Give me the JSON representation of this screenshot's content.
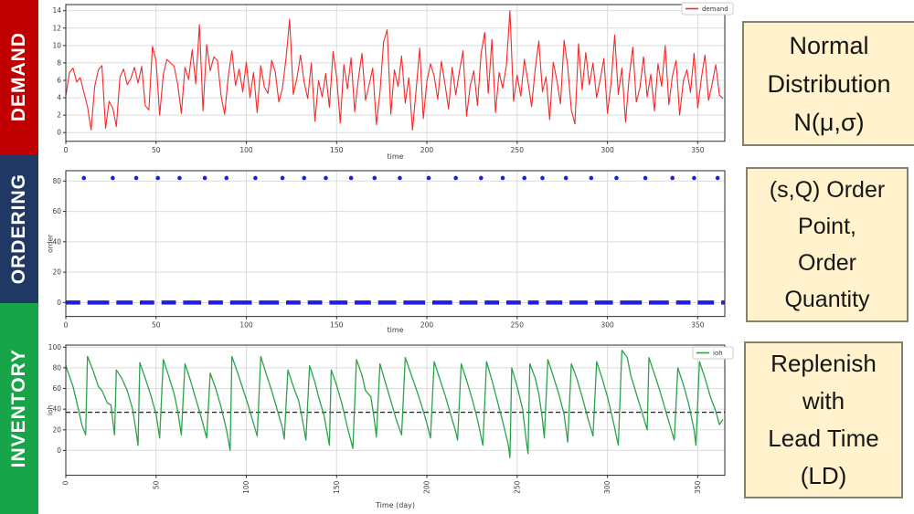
{
  "sidebar": {
    "items": [
      {
        "label": "DEMAND",
        "color": "#C00000"
      },
      {
        "label": "ORDERING",
        "color": "#1F3864"
      },
      {
        "label": "INVENTORY",
        "color": "#18A54A"
      }
    ]
  },
  "annotations": [
    {
      "lines": [
        "Normal",
        "Distribution",
        "N(μ,σ)"
      ]
    },
    {
      "lines": [
        "(s,Q) Order",
        "Point,",
        "Order",
        "Quantity"
      ]
    },
    {
      "lines": [
        "Replenish",
        "with",
        "Lead Time",
        "(LD)"
      ]
    }
  ],
  "annotation_style": {
    "bg": "#FFF2CC",
    "border": "#83836B"
  },
  "chart_style": {
    "grid": "#DCDCDC",
    "spine": "#2B2B2B",
    "tick_text": "#3C3C3C",
    "threshold": "#2F2F2F"
  },
  "chart_data": [
    {
      "type": "line",
      "series_name": "demand",
      "legend": "demand",
      "color": "#F42A2A",
      "xlabel": "time",
      "ylabel": "",
      "xticks": [
        0,
        50,
        100,
        150,
        200,
        250,
        300,
        350
      ],
      "yticks": [
        0,
        2,
        4,
        6,
        8,
        10,
        12,
        14
      ],
      "xlim": [
        0,
        365
      ],
      "ylim": [
        -0.5,
        14.7
      ],
      "grid": true,
      "legend_position": "upper right",
      "x_step": 2,
      "values": [
        4.2,
        6.9,
        7.4,
        5.8,
        6.3,
        4.6,
        3.0,
        0.3,
        5.3,
        7.2,
        7.7,
        0.5,
        3.6,
        2.8,
        0.7,
        6.4,
        7.3,
        5.5,
        6.2,
        7.5,
        5.7,
        7.6,
        3.1,
        2.6,
        9.9,
        8.2,
        2.0,
        6.7,
        8.4,
        8.0,
        7.6,
        5.5,
        2.2,
        7.5,
        6.1,
        9.5,
        5.6,
        12.4,
        2.5,
        10.1,
        7.1,
        8.7,
        8.3,
        4.2,
        2.1,
        6.5,
        9.4,
        5.4,
        7.3,
        4.7,
        8.1,
        4.0,
        6.9,
        2.3,
        7.7,
        5.2,
        4.5,
        8.3,
        7.0,
        3.5,
        5.1,
        8.6,
        13.0,
        4.4,
        6.2,
        8.9,
        5.8,
        3.9,
        8.0,
        1.3,
        6.0,
        4.1,
        6.8,
        2.9,
        9.3,
        6.4,
        1.1,
        7.8,
        5.0,
        8.6,
        2.4,
        6.1,
        9.1,
        3.7,
        5.5,
        7.4,
        0.9,
        4.6,
        10.4,
        11.8,
        2.1,
        7.2,
        5.3,
        8.8,
        3.4,
        6.3,
        0.3,
        4.8,
        9.7,
        1.6,
        5.9,
        7.9,
        6.5,
        3.8,
        8.2,
        5.6,
        2.7,
        7.5,
        4.3,
        7.0,
        9.4,
        1.9,
        5.4,
        7.1,
        3.1,
        9.0,
        11.5,
        4.5,
        10.7,
        2.3,
        6.9,
        5.1,
        7.7,
        14.0,
        3.6,
        6.6,
        4.2,
        8.4,
        5.8,
        3.0,
        7.3,
        10.5,
        4.7,
        6.4,
        1.5,
        8.1,
        6.0,
        3.3,
        10.6,
        7.6,
        2.6,
        1.0,
        10.2,
        4.9,
        9.2,
        5.5,
        8.0,
        4.0,
        6.1,
        8.5,
        2.2,
        5.7,
        11.2,
        4.4,
        7.4,
        1.2,
        6.3,
        9.8,
        3.5,
        5.2,
        8.7,
        4.1,
        6.7,
        2.5,
        7.9,
        5.3,
        10.0,
        3.2,
        6.5,
        8.3,
        2.0,
        5.9,
        7.2,
        4.6,
        9.1,
        2.8,
        6.2,
        8.9,
        3.7,
        5.6,
        7.8,
        4.3,
        3.9
      ]
    },
    {
      "type": "scatter",
      "series_name": "order",
      "color": "#1E1EE0",
      "xlabel": "time",
      "ylabel": "order",
      "xticks": [
        0,
        50,
        100,
        150,
        200,
        250,
        300,
        350
      ],
      "yticks": [
        0,
        20,
        40,
        60,
        80
      ],
      "xlim": [
        0,
        365
      ],
      "ylim": [
        -4.6,
        86.8
      ],
      "grid": true,
      "order_quantity": 82,
      "baseline_value": 0,
      "event_days": [
        10,
        26,
        39,
        51,
        63,
        77,
        89,
        105,
        120,
        132,
        144,
        158,
        171,
        185,
        201,
        216,
        230,
        242,
        254,
        264,
        277,
        291,
        305,
        321,
        336,
        348,
        361
      ]
    },
    {
      "type": "line",
      "series_name": "ioh",
      "legend": "ioh",
      "color": "#2BA34B",
      "xlabel": "Time (day)",
      "ylabel": "ioh",
      "xticks": [
        0,
        50,
        100,
        150,
        200,
        250,
        300,
        350
      ],
      "yticks": [
        0,
        20,
        40,
        60,
        80,
        100
      ],
      "xlim": [
        0,
        365
      ],
      "ylim": [
        -12,
        102
      ],
      "grid": true,
      "xtick_rotation": 90,
      "legend_position": "upper right",
      "order_point_line": 37,
      "points": [
        [
          0,
          82
        ],
        [
          4,
          62
        ],
        [
          7,
          40
        ],
        [
          9,
          24
        ],
        [
          11,
          15
        ],
        [
          12,
          91
        ],
        [
          15,
          78
        ],
        [
          18,
          62
        ],
        [
          20,
          58
        ],
        [
          23,
          46
        ],
        [
          25,
          44
        ],
        [
          27,
          15
        ],
        [
          28,
          78
        ],
        [
          31,
          70
        ],
        [
          34,
          58
        ],
        [
          37,
          40
        ],
        [
          39,
          18
        ],
        [
          40,
          5
        ],
        [
          41,
          85
        ],
        [
          44,
          70
        ],
        [
          47,
          54
        ],
        [
          50,
          35
        ],
        [
          52,
          12
        ],
        [
          54,
          88
        ],
        [
          57,
          72
        ],
        [
          60,
          55
        ],
        [
          62,
          38
        ],
        [
          64,
          15
        ],
        [
          66,
          84
        ],
        [
          69,
          68
        ],
        [
          72,
          50
        ],
        [
          75,
          32
        ],
        [
          78,
          12
        ],
        [
          80,
          75
        ],
        [
          83,
          60
        ],
        [
          86,
          42
        ],
        [
          89,
          20
        ],
        [
          91,
          0
        ],
        [
          92,
          91
        ],
        [
          95,
          76
        ],
        [
          98,
          60
        ],
        [
          101,
          44
        ],
        [
          104,
          26
        ],
        [
          106,
          14
        ],
        [
          108,
          91
        ],
        [
          111,
          74
        ],
        [
          114,
          58
        ],
        [
          117,
          40
        ],
        [
          120,
          22
        ],
        [
          121,
          11
        ],
        [
          123,
          78
        ],
        [
          126,
          62
        ],
        [
          129,
          48
        ],
        [
          131,
          30
        ],
        [
          133,
          10
        ],
        [
          135,
          82
        ],
        [
          138,
          66
        ],
        [
          140,
          52
        ],
        [
          143,
          34
        ],
        [
          146,
          5
        ],
        [
          147,
          78
        ],
        [
          150,
          63
        ],
        [
          153,
          45
        ],
        [
          156,
          22
        ],
        [
          159,
          2
        ],
        [
          161,
          88
        ],
        [
          164,
          73
        ],
        [
          166,
          58
        ],
        [
          169,
          52
        ],
        [
          171,
          28
        ],
        [
          172,
          13
        ],
        [
          174,
          84
        ],
        [
          177,
          66
        ],
        [
          180,
          48
        ],
        [
          183,
          30
        ],
        [
          186,
          15
        ],
        [
          188,
          90
        ],
        [
          191,
          75
        ],
        [
          194,
          60
        ],
        [
          197,
          44
        ],
        [
          200,
          26
        ],
        [
          202,
          12
        ],
        [
          204,
          86
        ],
        [
          207,
          70
        ],
        [
          210,
          54
        ],
        [
          213,
          36
        ],
        [
          216,
          18
        ],
        [
          217,
          10
        ],
        [
          219,
          84
        ],
        [
          222,
          68
        ],
        [
          225,
          50
        ],
        [
          228,
          30
        ],
        [
          231,
          5
        ],
        [
          233,
          86
        ],
        [
          236,
          68
        ],
        [
          239,
          48
        ],
        [
          242,
          28
        ],
        [
          245,
          6
        ],
        [
          246,
          -7
        ],
        [
          247,
          80
        ],
        [
          250,
          62
        ],
        [
          253,
          40
        ],
        [
          255,
          10
        ],
        [
          256,
          -3
        ],
        [
          257,
          84
        ],
        [
          260,
          70
        ],
        [
          262,
          55
        ],
        [
          264,
          30
        ],
        [
          265,
          12
        ],
        [
          267,
          88
        ],
        [
          270,
          72
        ],
        [
          273,
          55
        ],
        [
          276,
          35
        ],
        [
          278,
          8
        ],
        [
          280,
          84
        ],
        [
          283,
          70
        ],
        [
          286,
          52
        ],
        [
          289,
          32
        ],
        [
          292,
          14
        ],
        [
          294,
          86
        ],
        [
          297,
          70
        ],
        [
          300,
          52
        ],
        [
          303,
          30
        ],
        [
          306,
          5
        ],
        [
          308,
          97
        ],
        [
          311,
          90
        ],
        [
          313,
          72
        ],
        [
          316,
          55
        ],
        [
          319,
          38
        ],
        [
          322,
          20
        ],
        [
          323,
          90
        ],
        [
          326,
          74
        ],
        [
          329,
          58
        ],
        [
          332,
          40
        ],
        [
          335,
          22
        ],
        [
          337,
          10
        ],
        [
          339,
          80
        ],
        [
          342,
          64
        ],
        [
          345,
          45
        ],
        [
          348,
          20
        ],
        [
          349,
          5
        ],
        [
          351,
          86
        ],
        [
          354,
          70
        ],
        [
          357,
          52
        ],
        [
          360,
          38
        ],
        [
          362,
          25
        ],
        [
          364,
          30
        ]
      ]
    }
  ]
}
